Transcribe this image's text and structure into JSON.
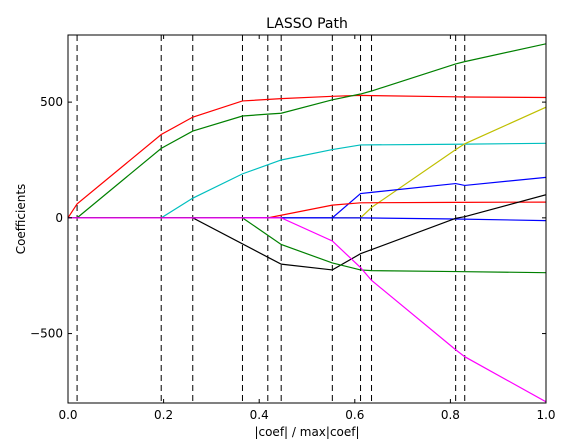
{
  "chart_data": {
    "type": "line",
    "title": "LASSO Path",
    "xlabel": "|coef| / max|coef|",
    "ylabel": "Coefficients",
    "xlim": [
      0.0,
      1.0
    ],
    "ylim": [
      -800,
      790
    ],
    "xticks": [
      {
        "value": 0.0,
        "label": "0.0"
      },
      {
        "value": 0.2,
        "label": "0.2"
      },
      {
        "value": 0.4,
        "label": "0.4"
      },
      {
        "value": 0.6,
        "label": "0.6"
      },
      {
        "value": 0.8,
        "label": "0.8"
      },
      {
        "value": 1.0,
        "label": "1.0"
      }
    ],
    "yticks": [
      {
        "value": -500,
        "label": "−500"
      },
      {
        "value": 0,
        "label": "0"
      },
      {
        "value": 500,
        "label": "500"
      }
    ],
    "grid": false,
    "legend": false,
    "vlines": [
      0.0,
      0.019,
      0.195,
      0.261,
      0.365,
      0.418,
      0.446,
      0.553,
      0.612,
      0.635,
      0.811,
      0.83,
      1.0
    ],
    "series": [
      {
        "color": "#ff0000",
        "x": [
          0.0,
          0.019,
          0.195,
          0.261,
          0.365,
          0.446,
          0.553,
          0.612,
          0.635,
          0.811,
          0.83,
          1.0
        ],
        "y": [
          0,
          60,
          360,
          435,
          505,
          515,
          525,
          529,
          528,
          523,
          522,
          520
        ]
      },
      {
        "color": "#008000",
        "x": [
          0.0,
          0.019,
          0.195,
          0.261,
          0.365,
          0.418,
          0.446,
          0.553,
          0.612,
          0.635,
          0.811,
          0.83,
          1.0
        ],
        "y": [
          0,
          0,
          300,
          375,
          440,
          448,
          452,
          510,
          535,
          548,
          665,
          675,
          752
        ]
      },
      {
        "color": "#00bfbf",
        "x": [
          0.0,
          0.195,
          0.261,
          0.365,
          0.446,
          0.553,
          0.612,
          0.811,
          1.0
        ],
        "y": [
          0,
          0,
          85,
          190,
          250,
          295,
          315,
          318,
          322
        ]
      },
      {
        "color": "#bfbf00",
        "x": [
          0.0,
          0.612,
          0.635,
          0.811,
          0.83,
          1.0
        ],
        "y": [
          0,
          0,
          45,
          295,
          320,
          478
        ]
      },
      {
        "color": "#0000ff",
        "x": [
          0.0,
          0.553,
          0.612,
          0.635,
          0.811,
          0.83,
          1.0
        ],
        "y": [
          0,
          0,
          105,
          110,
          148,
          140,
          175
        ]
      },
      {
        "color": "#ff0000",
        "x": [
          0.0,
          0.418,
          0.553,
          0.612,
          0.811,
          1.0
        ],
        "y": [
          0,
          0,
          55,
          65,
          67,
          68
        ]
      },
      {
        "color": "#0000ff",
        "x": [
          0.0,
          0.612,
          0.811,
          1.0
        ],
        "y": [
          0,
          0,
          -5,
          -12
        ]
      },
      {
        "color": "#000000",
        "x": [
          0.0,
          0.261,
          0.418,
          0.446,
          0.553,
          0.612,
          0.811,
          0.83,
          1.0
        ],
        "y": [
          0,
          0,
          -170,
          -200,
          -225,
          -155,
          -2,
          5,
          100
        ]
      },
      {
        "color": "#008000",
        "x": [
          0.0,
          0.365,
          0.446,
          0.553,
          0.612,
          0.635,
          0.811,
          1.0
        ],
        "y": [
          0,
          0,
          -115,
          -195,
          -225,
          -228,
          -232,
          -237
        ]
      },
      {
        "color": "#ff00ff",
        "x": [
          0.0,
          0.446,
          0.553,
          0.612,
          0.635,
          0.811,
          0.83,
          1.0
        ],
        "y": [
          0,
          0,
          -100,
          -215,
          -270,
          -570,
          -600,
          -795
        ]
      }
    ]
  }
}
